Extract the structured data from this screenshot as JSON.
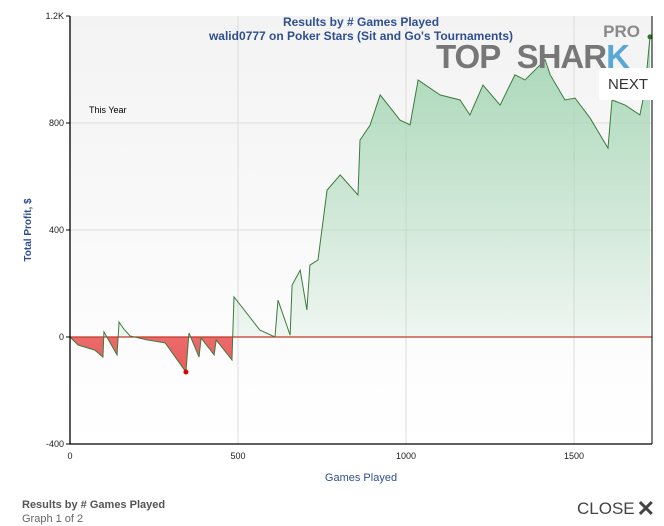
{
  "chart_data": {
    "type": "area",
    "title": "Results by # Games Played",
    "subtitle": "walid0777 on Poker Stars (Sit and Go's Tournaments)",
    "annotation": "This Year",
    "xlabel": "Games Played",
    "ylabel": "Total Profit, $",
    "xlim": [
      0,
      1732
    ],
    "ylim": [
      -400,
      1200
    ],
    "xticks": [
      0,
      500,
      1000,
      1500
    ],
    "xtick_labels": [
      "0",
      "500",
      "1000",
      "1500"
    ],
    "yticks": [
      -400,
      0,
      400,
      800,
      1200
    ],
    "ytick_labels": [
      "-400",
      "0",
      "400",
      "800",
      "1.2K"
    ],
    "grid": true,
    "colors": {
      "line": "#3e7a3e",
      "positive_fill": "#9fd4b0",
      "negative_fill": "#e84a4a",
      "zero_line": "#c0392b"
    },
    "x": [
      0,
      24,
      74,
      98,
      101,
      140,
      146,
      160,
      179,
      229,
      283,
      345,
      354,
      384,
      390,
      429,
      435,
      482,
      488,
      565,
      610,
      619,
      655,
      661,
      685,
      705,
      714,
      738,
      765,
      804,
      857,
      863,
      893,
      923,
      982,
      1012,
      1036,
      1101,
      1161,
      1190,
      1229,
      1280,
      1324,
      1354,
      1414,
      1429,
      1473,
      1503,
      1548,
      1601,
      1613,
      1652,
      1696,
      1711,
      1726
    ],
    "y": [
      0,
      -30,
      -49,
      -75,
      19,
      -67,
      56,
      30,
      4,
      -11,
      -22,
      -131,
      15,
      -75,
      -4,
      -67,
      -11,
      -86,
      150,
      26,
      0,
      138,
      7,
      194,
      250,
      101,
      269,
      288,
      549,
      606,
      531,
      736,
      792,
      905,
      811,
      793,
      961,
      905,
      886,
      830,
      942,
      867,
      980,
      961,
      1036,
      980,
      886,
      893,
      818,
      706,
      886,
      867,
      830,
      924,
      1122
    ]
  },
  "logo": {
    "pro": "PRO",
    "top": "TOP",
    "shark": "SHAR",
    "k": "K"
  },
  "nav": {
    "next": "NEXT",
    "close": "CLOSE",
    "close_icon": "x-icon"
  },
  "footer": {
    "title": "Results by # Games Played",
    "page": "Graph 1 of 2"
  }
}
